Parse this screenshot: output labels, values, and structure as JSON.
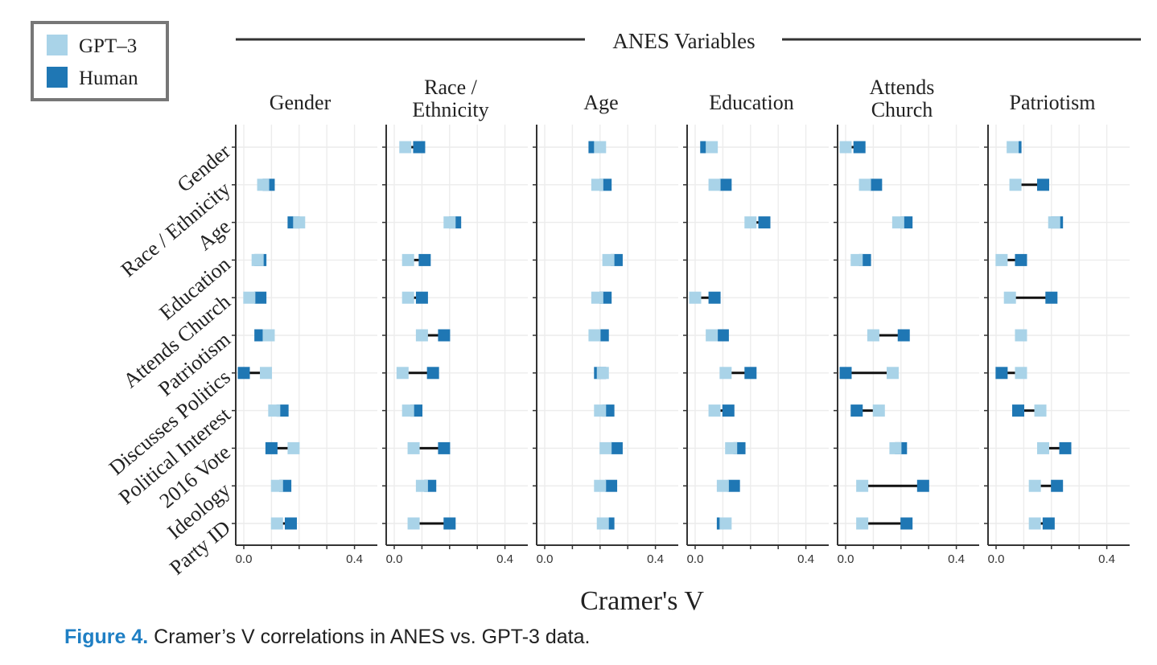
{
  "chart_data": {
    "type": "dumbbell",
    "header_title": "ANES Variables",
    "xlabel": "Cramer's V",
    "legend": [
      {
        "label": "GPT–3",
        "color": "#a9d3e8"
      },
      {
        "label": "Human",
        "color": "#1f77b4"
      }
    ],
    "legend_position": "top-left",
    "xlim": [
      -0.02,
      0.5
    ],
    "x_ticks": [
      "0.0",
      "0.4"
    ],
    "grid": true,
    "rows": [
      "Gender",
      "Race / Ethnicity",
      "Age",
      "Education",
      "Attends Church",
      "Patriotism",
      "Discusses Politics",
      "Political Interest",
      "2016 Vote",
      "Ideology",
      "Party ID"
    ],
    "panels": [
      {
        "title": [
          "Gender"
        ],
        "gpt3": [
          null,
          0.07,
          0.2,
          0.05,
          0.02,
          0.09,
          0.08,
          0.11,
          0.18,
          0.12,
          0.12
        ],
        "human": [
          null,
          0.09,
          0.18,
          0.06,
          0.06,
          0.06,
          0.0,
          0.14,
          0.1,
          0.15,
          0.17
        ]
      },
      {
        "title": [
          "Race /",
          "Ethnicity"
        ],
        "gpt3": [
          0.04,
          null,
          0.2,
          0.05,
          0.05,
          0.1,
          0.03,
          0.05,
          0.07,
          0.1,
          0.07
        ],
        "human": [
          0.09,
          null,
          0.22,
          0.11,
          0.1,
          0.18,
          0.14,
          0.08,
          0.18,
          0.13,
          0.2
        ]
      },
      {
        "title": [
          "Age"
        ],
        "gpt3": [
          0.2,
          0.19,
          null,
          0.23,
          0.19,
          0.18,
          0.21,
          0.2,
          0.22,
          0.2,
          0.21
        ],
        "human": [
          0.18,
          0.22,
          null,
          0.26,
          0.22,
          0.21,
          0.2,
          0.23,
          0.26,
          0.24,
          0.23
        ]
      },
      {
        "title": [
          "Education"
        ],
        "gpt3": [
          0.06,
          0.07,
          0.2,
          null,
          0.0,
          0.06,
          0.11,
          0.07,
          0.13,
          0.1,
          0.11
        ],
        "human": [
          0.04,
          0.11,
          0.25,
          null,
          0.07,
          0.1,
          0.2,
          0.12,
          0.16,
          0.14,
          0.1
        ]
      },
      {
        "title": [
          "Attends",
          "Church"
        ],
        "gpt3": [
          0.0,
          0.07,
          0.19,
          0.04,
          null,
          0.1,
          0.17,
          0.12,
          0.18,
          0.06,
          0.06
        ],
        "human": [
          0.05,
          0.11,
          0.22,
          0.07,
          null,
          0.21,
          0.0,
          0.04,
          0.2,
          0.28,
          0.22
        ]
      },
      {
        "title": [
          "Patriotism"
        ],
        "gpt3": [
          0.06,
          0.07,
          0.21,
          0.02,
          0.05,
          0.09,
          0.09,
          0.16,
          0.17,
          0.14,
          0.14
        ],
        "human": [
          0.07,
          0.17,
          0.22,
          0.09,
          0.2,
          null,
          0.02,
          0.08,
          0.25,
          0.22,
          0.19
        ]
      }
    ]
  },
  "caption": {
    "lead": "Figure 4.",
    "text": " Cramer’s V correlations in ANES vs. GPT-3 data."
  }
}
